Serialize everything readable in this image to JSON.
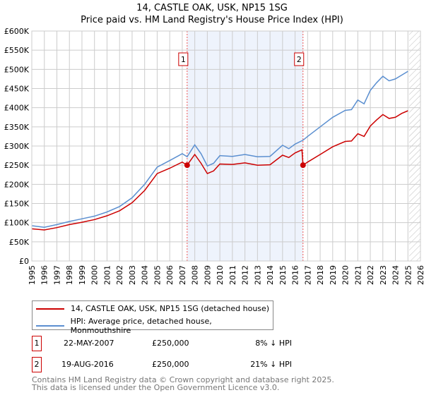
{
  "chart_data": {
    "type": "line",
    "title": "14, CASTLE OAK, USK, NP15 1SG",
    "subtitle": "Price paid vs. HM Land Registry's House Price Index (HPI)",
    "xlim": [
      1995,
      2026
    ],
    "ylim": [
      0,
      600000
    ],
    "y_ticks": [
      {
        "v": 0,
        "label": "£0"
      },
      {
        "v": 50000,
        "label": "£50K"
      },
      {
        "v": 100000,
        "label": "£100K"
      },
      {
        "v": 150000,
        "label": "£150K"
      },
      {
        "v": 200000,
        "label": "£200K"
      },
      {
        "v": 250000,
        "label": "£250K"
      },
      {
        "v": 300000,
        "label": "£300K"
      },
      {
        "v": 350000,
        "label": "£350K"
      },
      {
        "v": 400000,
        "label": "£400K"
      },
      {
        "v": 450000,
        "label": "£450K"
      },
      {
        "v": 500000,
        "label": "£500K"
      },
      {
        "v": 550000,
        "label": "£550K"
      },
      {
        "v": 600000,
        "label": "£600K"
      }
    ],
    "x_ticks": [
      "1995",
      "1996",
      "1997",
      "1998",
      "1999",
      "2000",
      "2001",
      "2002",
      "2003",
      "2004",
      "2005",
      "2006",
      "2007",
      "2008",
      "2009",
      "2010",
      "2011",
      "2012",
      "2013",
      "2014",
      "2015",
      "2016",
      "2017",
      "2018",
      "2019",
      "2020",
      "2021",
      "2022",
      "2023",
      "2024",
      "2025",
      "2026"
    ],
    "grid": true,
    "shaded_range": [
      2007.39,
      2016.63
    ],
    "forecast_hatch_from": 2025.1,
    "series": [
      {
        "name": "14, CASTLE OAK, USK, NP15 1SG (detached house)",
        "color": "#cc0000",
        "x": [
          1995,
          1996,
          1997,
          1998,
          1999,
          2000,
          2001,
          2002,
          2003,
          2004,
          2005,
          2006,
          2007,
          2007.39,
          2008,
          2008.5,
          2009,
          2009.5,
          2010,
          2011,
          2012,
          2013,
          2014,
          2015,
          2015.5,
          2016,
          2016.55,
          2016.63,
          2017,
          2018,
          2019,
          2020,
          2020.5,
          2021,
          2021.5,
          2022,
          2022.5,
          2023,
          2023.5,
          2024,
          2024.5,
          2025
        ],
        "y": [
          84000,
          81000,
          87000,
          95000,
          101000,
          108000,
          118000,
          131000,
          152000,
          184000,
          228000,
          242000,
          258000,
          250000,
          278000,
          255000,
          228000,
          235000,
          253000,
          252000,
          256000,
          250000,
          251000,
          276000,
          270000,
          282000,
          290000,
          250000,
          258000,
          278000,
          298000,
          312000,
          313000,
          332000,
          325000,
          352000,
          368000,
          382000,
          372000,
          375000,
          385000,
          392000
        ]
      },
      {
        "name": "HPI: Average price, detached house, Monmouthshire",
        "color": "#5b8fd0",
        "x": [
          1995,
          1996,
          1997,
          1998,
          1999,
          2000,
          2001,
          2002,
          2003,
          2004,
          2005,
          2006,
          2007,
          2007.39,
          2008,
          2008.5,
          2009,
          2009.5,
          2010,
          2011,
          2012,
          2013,
          2014,
          2015,
          2015.5,
          2016,
          2016.63,
          2017,
          2018,
          2019,
          2020,
          2020.5,
          2021,
          2021.5,
          2022,
          2022.5,
          2023,
          2023.5,
          2024,
          2024.5,
          2025
        ],
        "y": [
          92000,
          88000,
          95000,
          103000,
          110000,
          117000,
          128000,
          142000,
          165000,
          200000,
          245000,
          262000,
          280000,
          272000,
          303000,
          280000,
          248000,
          255000,
          275000,
          273000,
          278000,
          272000,
          273000,
          302000,
          293000,
          305000,
          315000,
          325000,
          350000,
          375000,
          393000,
          395000,
          420000,
          410000,
          445000,
          465000,
          482000,
          470000,
          475000,
          485000,
          495000
        ]
      }
    ],
    "sales": [
      {
        "id": "1",
        "x": 2007.39,
        "y": 250000
      },
      {
        "id": "2",
        "x": 2016.63,
        "y": 250000
      }
    ]
  },
  "legend": {
    "red": "14, CASTLE OAK, USK, NP15 1SG (detached house)",
    "blue": "HPI: Average price, detached house, Monmouthshire"
  },
  "transactions": [
    {
      "id": "1",
      "date": "22-MAY-2007",
      "price": "£250,000",
      "hpi": "8% ↓ HPI"
    },
    {
      "id": "2",
      "date": "19-AUG-2016",
      "price": "£250,000",
      "hpi": "21% ↓ HPI"
    }
  ],
  "footer": {
    "line1": "Contains HM Land Registry data © Crown copyright and database right 2025.",
    "line2": "This data is licensed under the Open Government Licence v3.0."
  }
}
